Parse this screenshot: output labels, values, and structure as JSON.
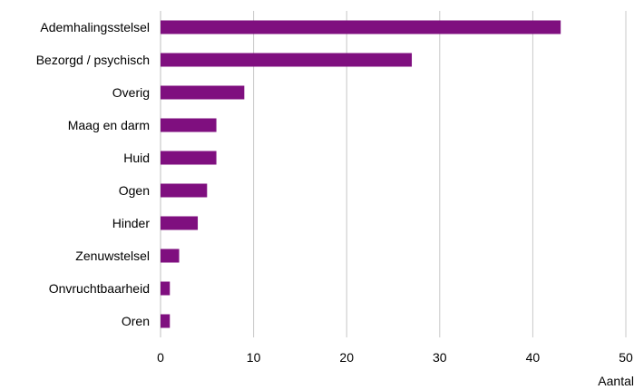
{
  "chart_data": {
    "type": "bar",
    "orientation": "horizontal",
    "categories": [
      "Ademhalingsstelsel",
      "Bezorgd / psychisch",
      "Overig",
      "Maag en darm",
      "Huid",
      "Ogen",
      "Hinder",
      "Zenuwstelsel",
      "Onvruchtbaarheid",
      "Oren"
    ],
    "values": [
      43,
      27,
      9,
      6,
      6,
      5,
      4,
      2,
      1,
      1
    ],
    "xlabel": "Aantal",
    "ylabel": "",
    "xlim": [
      0,
      50
    ],
    "xticks": [
      "0",
      "10",
      "20",
      "30",
      "40",
      "50"
    ],
    "grid": "vertical",
    "legend": "none",
    "bar_color": "#7f0f7f"
  }
}
